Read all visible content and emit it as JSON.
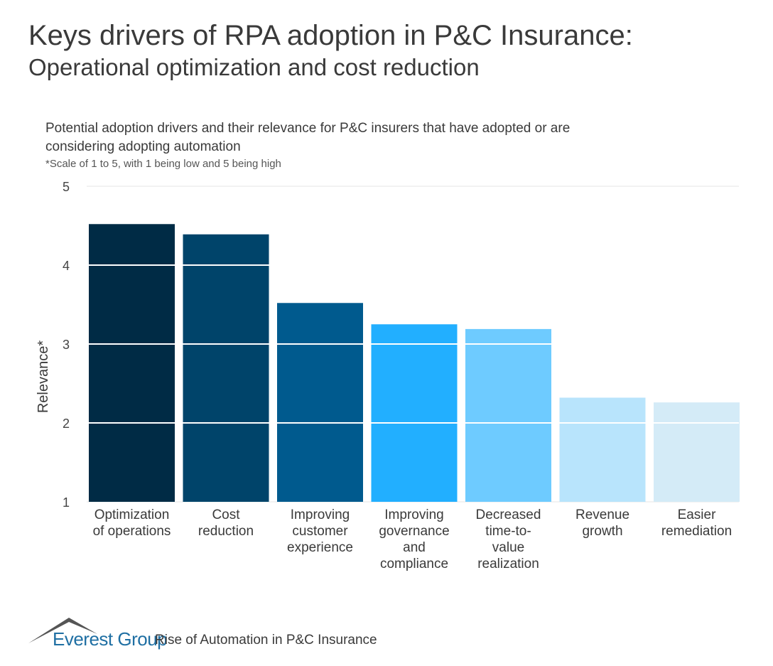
{
  "title": "Keys drivers of RPA adoption in P&C Insurance:",
  "subtitle": "Operational optimization and cost reduction",
  "chart_data": {
    "type": "bar",
    "title": "Potential adoption drivers and their relevance for P&C insurers that have adopted or are considering adopting automation",
    "note": "*Scale of 1 to 5, with 1 being low and 5 being high",
    "ylabel": "Relevance*",
    "xlabel": "",
    "ylim": [
      1,
      5
    ],
    "yticks": [
      "1",
      "2",
      "3",
      "4",
      "5"
    ],
    "grid": true,
    "categories": [
      [
        "Optimization",
        "of operations"
      ],
      [
        "Cost",
        "reduction"
      ],
      [
        "Improving",
        "customer",
        "experience"
      ],
      [
        "Improving",
        "governance",
        "and",
        "compliance"
      ],
      [
        "Decreased",
        "time-to-",
        "value",
        "realization"
      ],
      [
        "Revenue",
        "growth"
      ],
      [
        "Easier",
        "remediation"
      ]
    ],
    "values": [
      4.52,
      4.39,
      3.52,
      3.25,
      3.19,
      2.32,
      2.26
    ],
    "colors": [
      "#002b45",
      "#00446a",
      "#005a8e",
      "#22afff",
      "#6ecbff",
      "#b8e4fc",
      "#d4ebf7"
    ]
  },
  "footer": {
    "logo": "Everest Group",
    "source": "Rise of Automation in P&C Insurance"
  }
}
